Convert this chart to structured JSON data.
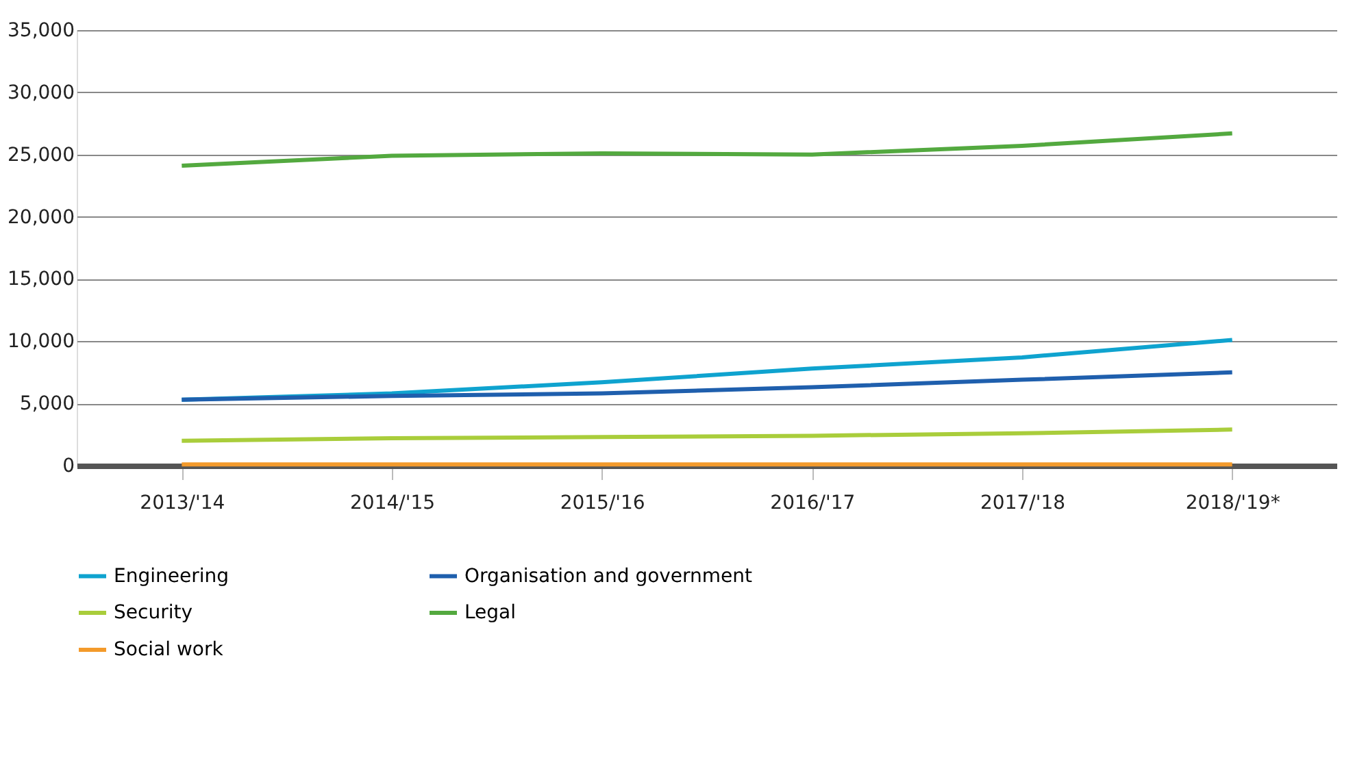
{
  "chart_data": {
    "type": "line",
    "categories": [
      "2013/'14",
      "2014/'15",
      "2015/'16",
      "2016/'17",
      "2017/'18",
      "2018/'19*"
    ],
    "series": [
      {
        "name": "Engineering",
        "color": "#0fa3cf",
        "values": [
          5300,
          5800,
          6700,
          7800,
          8700,
          10100
        ]
      },
      {
        "name": "Organisation and government",
        "color": "#1f5fad",
        "values": [
          5300,
          5600,
          5800,
          6300,
          6900,
          7500
        ]
      },
      {
        "name": "Security",
        "color": "#a9cd3b",
        "values": [
          2000,
          2200,
          2300,
          2400,
          2600,
          2900
        ]
      },
      {
        "name": "Legal",
        "color": "#53a93f",
        "values": [
          24100,
          24900,
          25100,
          25000,
          25700,
          26700
        ]
      },
      {
        "name": "Social work",
        "color": "#f39a2b",
        "values": [
          100,
          100,
          100,
          100,
          100,
          100
        ]
      }
    ],
    "ylim": [
      0,
      35000
    ],
    "yticks": [
      0,
      {
        "value": 5000,
        "label": "5,000"
      },
      {
        "value": 10000,
        "label": "10,000"
      },
      {
        "value": 15000,
        "label": "15,000"
      },
      {
        "value": 20000,
        "label": "20,000"
      },
      {
        "value": 25000,
        "label": "25,000"
      },
      {
        "value": 30000,
        "label": "30,000"
      },
      {
        "value": 35000,
        "label": "35,000"
      }
    ],
    "grid": "y",
    "legend": "bottom",
    "marker": "none",
    "line_style": "solid"
  }
}
